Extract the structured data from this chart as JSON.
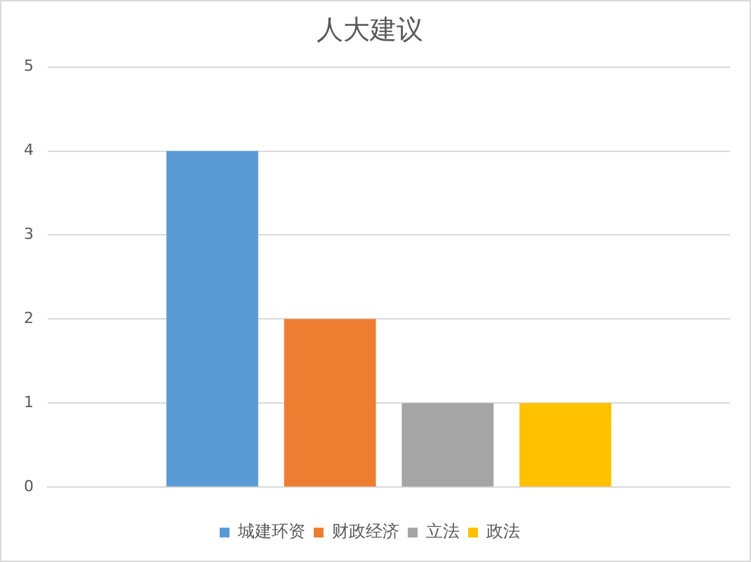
{
  "chart_data": {
    "type": "bar",
    "title": "人大建议",
    "categories": [
      null
    ],
    "series": [
      {
        "name": "城建环资",
        "color": "#5b9bd5",
        "values": [
          4
        ]
      },
      {
        "name": "财政经济",
        "color": "#ed7d31",
        "values": [
          2
        ]
      },
      {
        "name": "立法",
        "color": "#a5a5a5",
        "values": [
          1
        ]
      },
      {
        "name": "政法",
        "color": "#ffc000",
        "values": [
          1
        ]
      }
    ],
    "ylim": [
      0,
      5
    ],
    "yticks": [
      0,
      1,
      2,
      3,
      4,
      5
    ],
    "grid": "y",
    "legend": "bottom"
  }
}
